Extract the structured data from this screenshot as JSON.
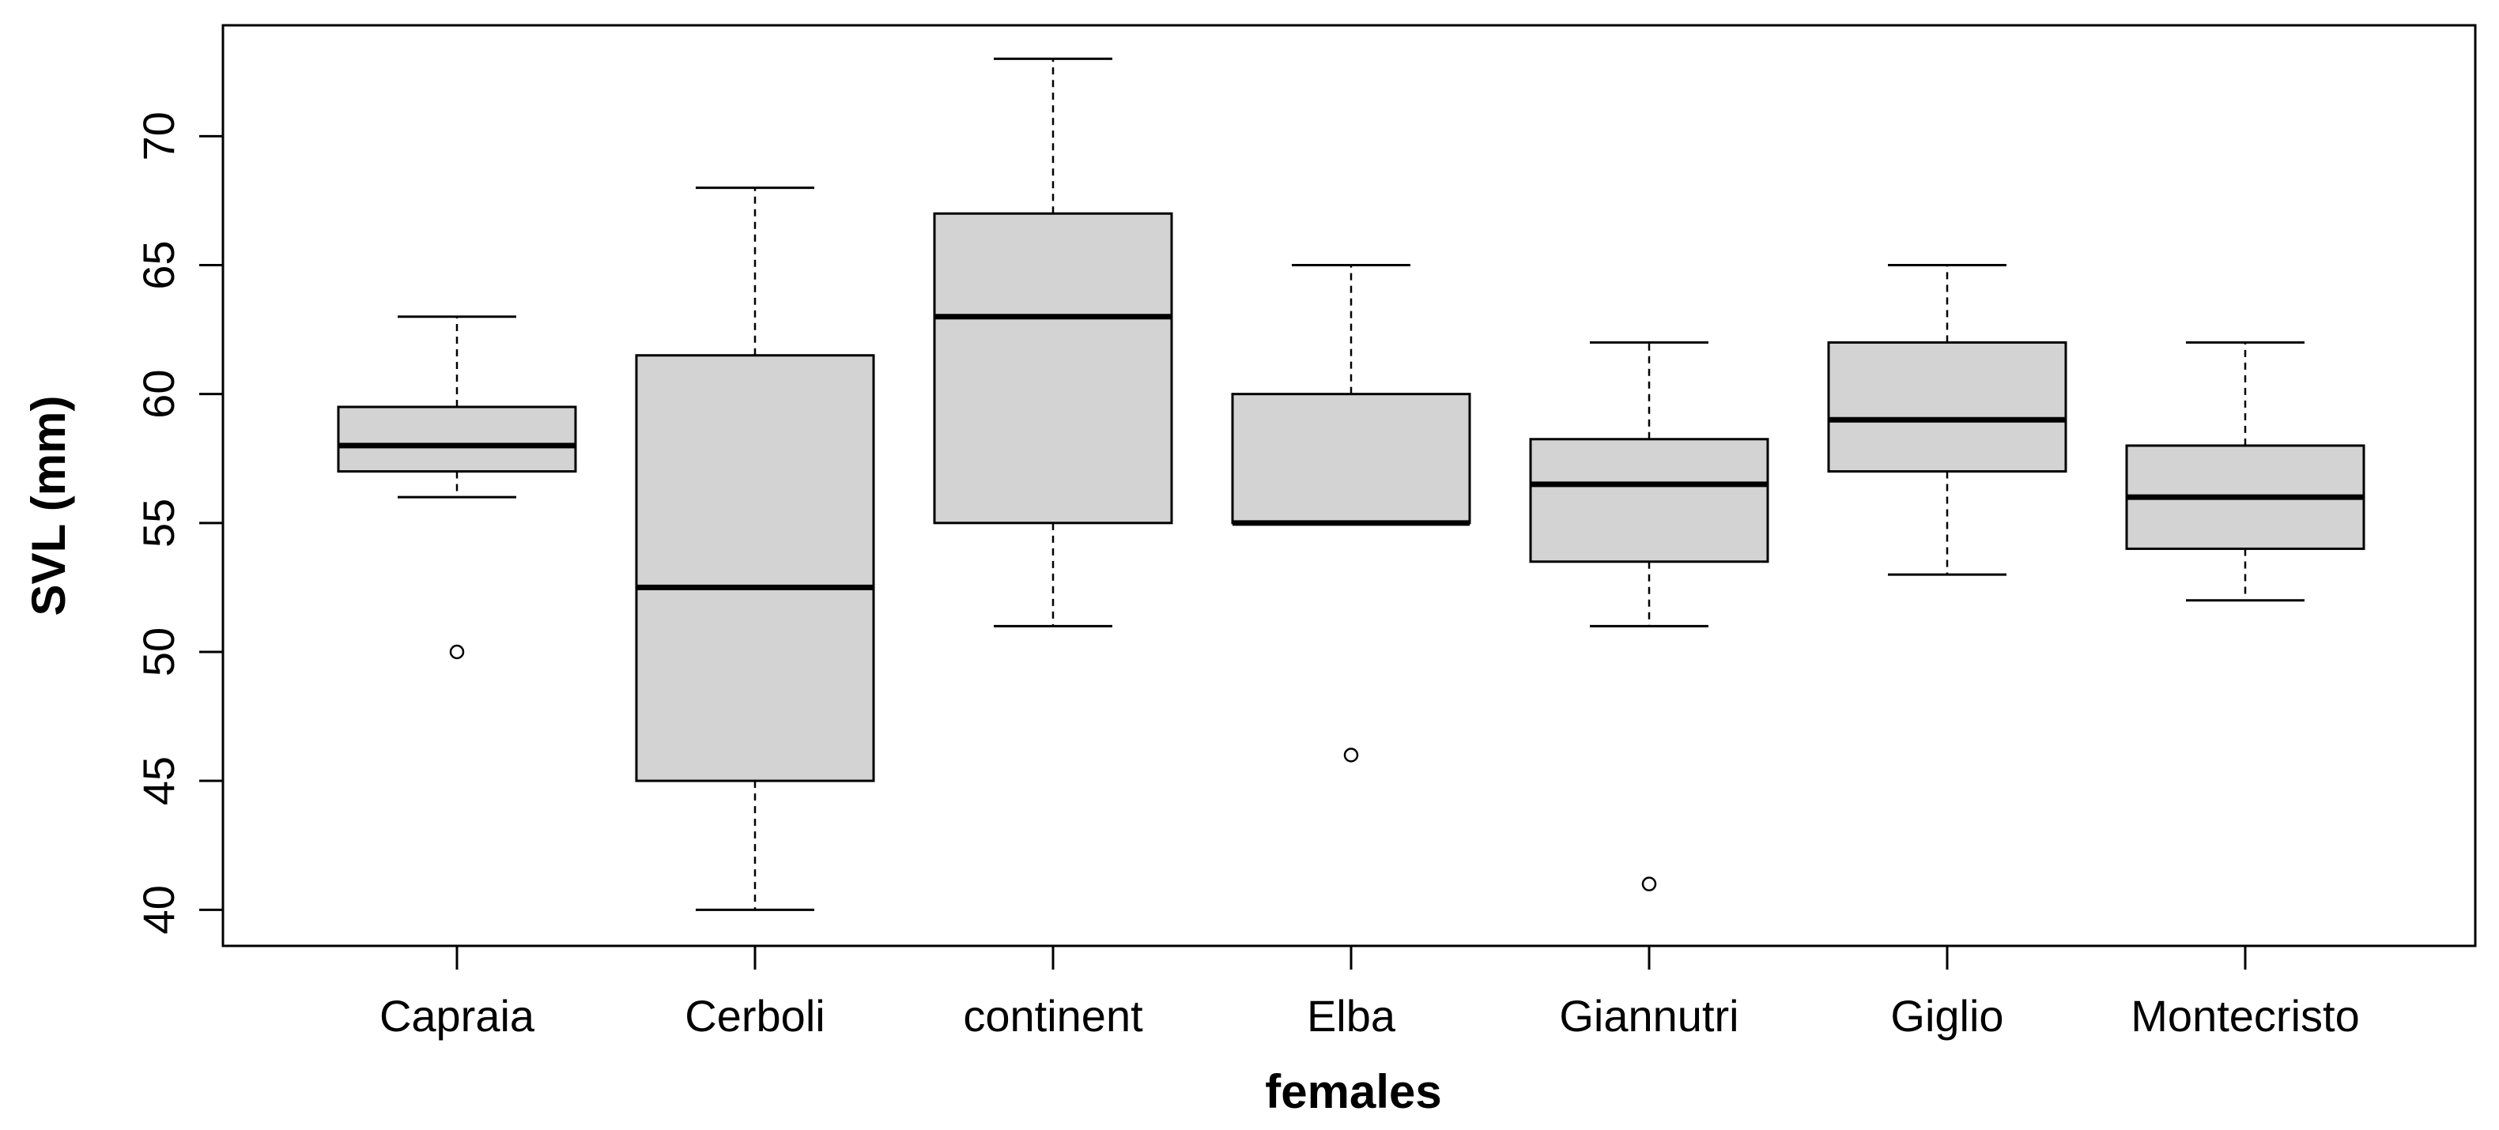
{
  "chart_data": {
    "type": "boxplot",
    "title": "",
    "xlabel": "females",
    "ylabel": "SVL (mm)",
    "ylim": [
      38.6,
      74.3
    ],
    "yticks": [
      40,
      45,
      50,
      55,
      60,
      65,
      70
    ],
    "categories": [
      "Capraia",
      "Cerboli",
      "continent",
      "Elba",
      "Giannutri",
      "Giglio",
      "Montecristo"
    ],
    "boxes": [
      {
        "name": "Capraia",
        "whisker_low": 56,
        "q1": 57,
        "median": 58,
        "q3": 59.5,
        "whisker_high": 63,
        "outliers": [
          50
        ]
      },
      {
        "name": "Cerboli",
        "whisker_low": 40,
        "q1": 45,
        "median": 52.5,
        "q3": 61.5,
        "whisker_high": 68,
        "outliers": []
      },
      {
        "name": "continent",
        "whisker_low": 51,
        "q1": 55,
        "median": 63,
        "q3": 67,
        "whisker_high": 73,
        "outliers": []
      },
      {
        "name": "Elba",
        "whisker_low": 55,
        "q1": 55,
        "median": 55,
        "q3": 60,
        "whisker_high": 65,
        "outliers": [
          46
        ]
      },
      {
        "name": "Giannutri",
        "whisker_low": 51,
        "q1": 53.5,
        "median": 56.5,
        "q3": 58.25,
        "whisker_high": 62,
        "outliers": [
          41
        ]
      },
      {
        "name": "Giglio",
        "whisker_low": 53,
        "q1": 57,
        "median": 59,
        "q3": 62,
        "whisker_high": 65,
        "outliers": []
      },
      {
        "name": "Montecristo",
        "whisker_low": 52,
        "q1": 54,
        "median": 56,
        "q3": 58,
        "whisker_high": 62,
        "outliers": []
      }
    ],
    "box_fill": "#d3d3d3",
    "line_color": "#000000",
    "grid": false,
    "legend": "none"
  }
}
